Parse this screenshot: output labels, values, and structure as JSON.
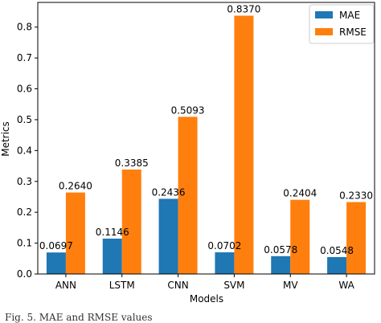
{
  "caption": "Fig. 5. MAE and RMSE values",
  "chart_data": {
    "type": "bar",
    "title": "",
    "xlabel": "Models",
    "ylabel": "Metrics",
    "ylim": [
      0,
      0.88
    ],
    "yticks": [
      "0.0",
      "0.1",
      "0.2",
      "0.3",
      "0.4",
      "0.5",
      "0.6",
      "0.7",
      "0.8"
    ],
    "categories": [
      "ANN",
      "LSTM",
      "CNN",
      "SVM",
      "MV",
      "WA"
    ],
    "series": [
      {
        "name": "MAE",
        "color": "#1f77b4",
        "values": [
          0.0697,
          0.1146,
          0.2436,
          0.0702,
          0.0578,
          0.0548
        ],
        "labels": [
          "0.0697",
          "0.1146",
          "0.2436",
          "0.0702",
          "0.0578",
          "0.0548"
        ]
      },
      {
        "name": "RMSE",
        "color": "#ff7f0e",
        "values": [
          0.264,
          0.3385,
          0.5093,
          0.837,
          0.2404,
          0.233
        ],
        "labels": [
          "0.2640",
          "0.3385",
          "0.5093",
          "0.8370",
          "0.2404",
          "0.2330"
        ]
      }
    ],
    "legend": "top-right",
    "grid": false
  }
}
